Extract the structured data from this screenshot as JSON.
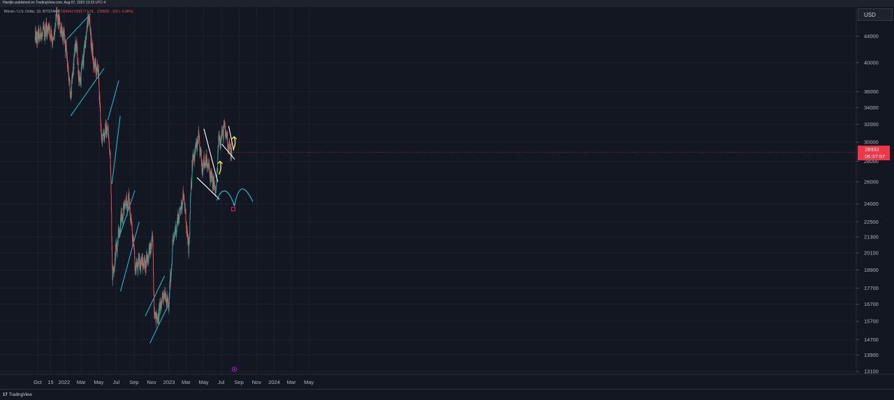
{
  "header": {
    "published": "Hardjin published on TradingView.com, Aug 07, 2023 13:22 UTC-4",
    "symbol": "Bitcoin / U.S. Dollar, 1D, BITSTAMP",
    "ohlc": "O29041 H29177 L28... C28932 −110 (−0.38%)"
  },
  "currency": "USD",
  "last_price": {
    "price": "28932",
    "countdown": "06:37:57"
  },
  "footer": {
    "logo": "17",
    "brand": "TradingView"
  },
  "colors": {
    "background": "#131722",
    "up_candle": "#26a69a",
    "down_candle": "#ef5350",
    "channel": "#22c5e0",
    "wedge": "#ffffff",
    "arrow": "#ffeb3b",
    "target_box": "#e91e63",
    "price_tag": "#f23645"
  },
  "chart_data": {
    "type": "candlestick",
    "symbol": "BTCUSD",
    "exchange": "BITSTAMP",
    "interval": "1D",
    "y_axis": {
      "scale": "log",
      "ticks": [
        44000,
        40000,
        36000,
        34000,
        32000,
        30000,
        28000,
        26000,
        24000,
        22500,
        21300,
        20100,
        18900,
        17700,
        16700,
        15700,
        14700,
        13900,
        13100
      ]
    },
    "x_axis": {
      "ticks": [
        {
          "label": "Oct",
          "date": "2021-10-01"
        },
        {
          "label": "15",
          "date": "2021-11-15"
        },
        {
          "label": "2022",
          "date": "2022-01-01"
        },
        {
          "label": "Mar",
          "date": "2022-03-01"
        },
        {
          "label": "May",
          "date": "2022-05-01"
        },
        {
          "label": "Jul",
          "date": "2022-07-01"
        },
        {
          "label": "Sep",
          "date": "2022-09-01"
        },
        {
          "label": "Nov",
          "date": "2022-11-01"
        },
        {
          "label": "2023",
          "date": "2023-01-01"
        },
        {
          "label": "Mar",
          "date": "2023-03-01"
        },
        {
          "label": "May",
          "date": "2023-05-01"
        },
        {
          "label": "Jul",
          "date": "2023-07-01"
        },
        {
          "label": "Sep",
          "date": "2023-09-01"
        },
        {
          "label": "Nov",
          "date": "2023-11-01"
        },
        {
          "label": "2024",
          "date": "2024-01-01"
        },
        {
          "label": "Mar",
          "date": "2024-03-01"
        },
        {
          "label": "May",
          "date": "2024-05-01"
        }
      ]
    },
    "price_path": [
      {
        "date": "2021-09-22",
        "price": 43500
      },
      {
        "date": "2021-10-20",
        "price": 44500
      },
      {
        "date": "2021-11-08",
        "price": 45500
      },
      {
        "date": "2021-11-25",
        "price": 43000
      },
      {
        "date": "2021-12-05",
        "price": 47500
      },
      {
        "date": "2022-01-05",
        "price": 43000
      },
      {
        "date": "2022-01-24",
        "price": 35500
      },
      {
        "date": "2022-02-10",
        "price": 43500
      },
      {
        "date": "2022-02-24",
        "price": 37000
      },
      {
        "date": "2022-03-28",
        "price": 47500
      },
      {
        "date": "2022-04-12",
        "price": 40000
      },
      {
        "date": "2022-04-30",
        "price": 38500
      },
      {
        "date": "2022-05-10",
        "price": 30500
      },
      {
        "date": "2022-05-31",
        "price": 31500
      },
      {
        "date": "2022-06-10",
        "price": 29000
      },
      {
        "date": "2022-06-18",
        "price": 18500
      },
      {
        "date": "2022-07-08",
        "price": 21500
      },
      {
        "date": "2022-07-30",
        "price": 23800
      },
      {
        "date": "2022-08-15",
        "price": 24300
      },
      {
        "date": "2022-09-06",
        "price": 19000
      },
      {
        "date": "2022-09-20",
        "price": 19500
      },
      {
        "date": "2022-10-10",
        "price": 19300
      },
      {
        "date": "2022-11-05",
        "price": 21000
      },
      {
        "date": "2022-11-10",
        "price": 16300
      },
      {
        "date": "2022-11-21",
        "price": 15800
      },
      {
        "date": "2022-12-14",
        "price": 17500
      },
      {
        "date": "2022-12-30",
        "price": 16500
      },
      {
        "date": "2023-01-14",
        "price": 20900
      },
      {
        "date": "2023-02-20",
        "price": 24800
      },
      {
        "date": "2023-03-10",
        "price": 20200
      },
      {
        "date": "2023-03-22",
        "price": 28000
      },
      {
        "date": "2023-04-14",
        "price": 30400
      },
      {
        "date": "2023-04-25",
        "price": 27500
      },
      {
        "date": "2023-05-08",
        "price": 28200
      },
      {
        "date": "2023-06-14",
        "price": 25000
      },
      {
        "date": "2023-06-21",
        "price": 30000
      },
      {
        "date": "2023-07-13",
        "price": 31500
      },
      {
        "date": "2023-07-31",
        "price": 29200
      },
      {
        "date": "2023-08-07",
        "price": 28932
      }
    ],
    "drawings": {
      "channels": [
        {
          "lines": [
            [
              [
                "2022-01-10",
                43500
              ],
              [
                "2022-04-03",
                47700
              ]
            ],
            [
              [
                "2022-01-24",
                33000
              ],
              [
                "2022-05-20",
                39200
              ]
            ]
          ]
        },
        {
          "lines": [
            [
              [
                "2022-06-02",
                32500
              ],
              [
                "2022-07-10",
                37500
              ]
            ],
            [
              [
                "2022-06-16",
                25800
              ],
              [
                "2022-07-15",
                33000
              ]
            ]
          ]
        },
        {
          "lines": [
            [
              [
                "2022-07-10",
                21200
              ],
              [
                "2022-09-04",
                25200
              ]
            ],
            [
              [
                "2022-07-16",
                17500
              ],
              [
                "2022-09-19",
                22500
              ]
            ]
          ]
        },
        {
          "lines": [
            [
              [
                "2022-10-10",
                16000
              ],
              [
                "2022-12-16",
                18500
              ]
            ],
            [
              [
                "2022-10-26",
                14500
              ],
              [
                "2023-01-02",
                16800
              ]
            ]
          ]
        }
      ],
      "wedges": [
        {
          "lines": [
            [
              [
                "2023-05-02",
                31500
              ],
              [
                "2023-06-19",
                26000
              ]
            ],
            [
              [
                "2023-04-08",
                26400
              ],
              [
                "2023-06-25",
                24400
              ]
            ]
          ]
        },
        {
          "lines": [
            [
              [
                "2023-07-27",
                31800
              ],
              [
                "2023-08-14",
                29100
              ]
            ],
            [
              [
                "2023-07-03",
                29800
              ],
              [
                "2023-08-17",
                28200
              ]
            ]
          ]
        }
      ],
      "arrows": [
        {
          "from": [
            "2023-06-23",
            26700
          ],
          "to": [
            "2023-06-27",
            28000
          ]
        },
        {
          "from": [
            "2023-08-12",
            29200
          ],
          "to": [
            "2023-08-15",
            30600
          ]
        }
      ],
      "projection_arcs": [
        {
          "points": [
            [
              "2023-06-16",
              24300
            ],
            [
              "2023-07-10",
              26100
            ],
            [
              "2023-08-06",
              24700
            ],
            [
              "2023-08-16",
              23800
            ]
          ]
        },
        {
          "points": [
            [
              "2023-08-16",
              23800
            ],
            [
              "2023-08-30",
              25800
            ],
            [
              "2023-09-20",
              25800
            ],
            [
              "2023-10-19",
              24200
            ]
          ]
        }
      ],
      "target_box": {
        "from": [
          "2023-08-06",
          23700
        ],
        "to": [
          "2023-08-18",
          23400
        ]
      }
    }
  }
}
